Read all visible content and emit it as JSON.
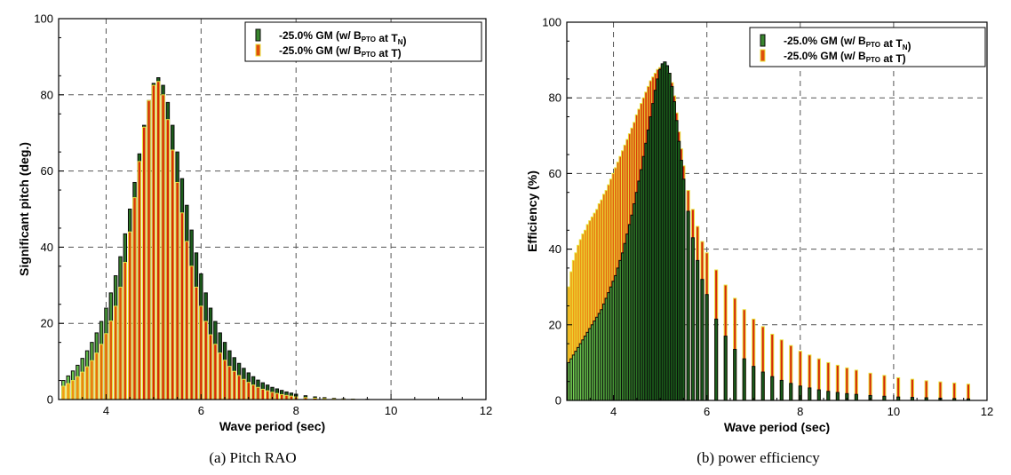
{
  "captions": [
    "(a)  Pitch  RAO",
    "(b)  power efficiency"
  ],
  "colors": {
    "series_tn_fill_low": "#7ee05a",
    "series_tn_fill_high": "#1b5e1b",
    "series_tn_edge": "#0a0a0a",
    "series_t_fill_low": "#f3a316",
    "series_t_fill_high": "#d62a08",
    "series_t_edge": "#e8e23a",
    "grid": "#555555"
  },
  "chart_data": [
    {
      "type": "bar",
      "title": "",
      "xlabel": "Wave period (sec)",
      "ylabel": "Significant pitch (deg.)",
      "xlim": [
        3,
        12
      ],
      "ylim": [
        0,
        100
      ],
      "xticks": [
        4,
        6,
        8,
        10,
        12
      ],
      "yticks": [
        0,
        20,
        40,
        60,
        80,
        100
      ],
      "grid": true,
      "legend_position": "top-right",
      "x": [
        3.1,
        3.2,
        3.3,
        3.4,
        3.5,
        3.6,
        3.7,
        3.8,
        3.9,
        4.0,
        4.1,
        4.2,
        4.3,
        4.4,
        4.5,
        4.6,
        4.7,
        4.8,
        4.9,
        5.0,
        5.1,
        5.2,
        5.3,
        5.4,
        5.5,
        5.6,
        5.7,
        5.8,
        5.9,
        6.0,
        6.1,
        6.2,
        6.3,
        6.4,
        6.5,
        6.6,
        6.7,
        6.8,
        6.9,
        7.0,
        7.1,
        7.2,
        7.3,
        7.4,
        7.5,
        7.6,
        7.7,
        7.8,
        7.9,
        8.0,
        8.2,
        8.4,
        8.6,
        8.8,
        9.0,
        9.2,
        9.5
      ],
      "series": [
        {
          "name": "-25.0% GM (w/ B_PTO at T_N)",
          "values": [
            5.0,
            6.2,
            7.5,
            9.0,
            10.8,
            12.8,
            15.0,
            17.5,
            20.5,
            24.0,
            28.0,
            32.5,
            37.5,
            43.5,
            50.0,
            57.0,
            64.5,
            72.0,
            78.5,
            83.0,
            84.5,
            82.5,
            78.0,
            72.0,
            65.0,
            58.0,
            51.0,
            44.5,
            38.5,
            33.0,
            28.0,
            24.0,
            20.5,
            17.5,
            15.0,
            12.8,
            11.0,
            9.5,
            8.2,
            7.0,
            6.0,
            5.1,
            4.4,
            3.8,
            3.2,
            2.8,
            2.4,
            2.0,
            1.7,
            1.4,
            1.0,
            0.7,
            0.5,
            0.3,
            0.2,
            0.1,
            0.05
          ]
        },
        {
          "name": "-25.0% GM (w/ B_PTO at T)",
          "values": [
            3.5,
            4.2,
            5.0,
            6.0,
            7.2,
            8.6,
            10.2,
            12.2,
            14.5,
            17.3,
            20.6,
            24.5,
            29.5,
            36.0,
            44.0,
            53.0,
            62.5,
            71.5,
            78.5,
            82.5,
            83.5,
            80.0,
            73.5,
            65.5,
            57.0,
            49.0,
            41.5,
            35.0,
            29.5,
            24.5,
            20.5,
            17.0,
            14.5,
            12.2,
            10.3,
            8.7,
            7.4,
            6.3,
            5.3,
            4.5,
            3.8,
            3.2,
            2.7,
            2.3,
            1.9,
            1.6,
            1.3,
            1.1,
            0.9,
            0.7,
            0.5,
            0.35,
            0.25,
            0.15,
            0.1,
            0.05,
            0.0
          ]
        }
      ]
    },
    {
      "type": "bar",
      "title": "",
      "xlabel": "Wave period (sec)",
      "ylabel": "Efficiency (%)",
      "xlim": [
        3,
        12
      ],
      "ylim": [
        0,
        100
      ],
      "xticks": [
        4,
        6,
        8,
        10,
        12
      ],
      "yticks": [
        0,
        20,
        40,
        60,
        80,
        100
      ],
      "grid": true,
      "legend_position": "top-right",
      "x": [
        3.05,
        3.1,
        3.15,
        3.2,
        3.25,
        3.3,
        3.35,
        3.4,
        3.45,
        3.5,
        3.55,
        3.6,
        3.65,
        3.7,
        3.75,
        3.8,
        3.85,
        3.9,
        3.95,
        4.0,
        4.05,
        4.1,
        4.15,
        4.2,
        4.25,
        4.3,
        4.35,
        4.4,
        4.45,
        4.5,
        4.55,
        4.6,
        4.65,
        4.7,
        4.75,
        4.8,
        4.85,
        4.9,
        4.95,
        5.0,
        5.05,
        5.1,
        5.15,
        5.2,
        5.25,
        5.3,
        5.35,
        5.4,
        5.45,
        5.5,
        5.6,
        5.7,
        5.8,
        5.9,
        6.0,
        6.2,
        6.4,
        6.6,
        6.8,
        7.0,
        7.2,
        7.4,
        7.6,
        7.8,
        8.0,
        8.2,
        8.4,
        8.6,
        8.8,
        9.0,
        9.2,
        9.5,
        9.8,
        10.1,
        10.4,
        10.7,
        11.0,
        11.3,
        11.6
      ],
      "series": [
        {
          "name": "-25.0% GM (w/ B_PTO at T_N)",
          "values": [
            10.0,
            11.0,
            12.0,
            13.0,
            14.0,
            15.0,
            16.0,
            17.0,
            18.0,
            19.0,
            20.0,
            21.0,
            22.0,
            23.0,
            24.0,
            25.5,
            27.0,
            28.5,
            30.0,
            31.5,
            33.0,
            35.0,
            37.0,
            39.0,
            41.5,
            44.0,
            46.5,
            49.0,
            52.0,
            55.0,
            58.0,
            61.0,
            64.5,
            68.0,
            71.5,
            75.0,
            78.5,
            82.0,
            85.0,
            87.5,
            89.0,
            89.5,
            88.5,
            86.5,
            83.0,
            79.0,
            74.0,
            68.5,
            63.5,
            58.5,
            50.0,
            43.0,
            37.0,
            32.0,
            28.0,
            21.5,
            17.0,
            13.5,
            11.0,
            9.0,
            7.5,
            6.3,
            5.3,
            4.5,
            3.8,
            3.3,
            2.8,
            2.4,
            2.1,
            1.8,
            1.6,
            1.3,
            1.1,
            0.9,
            0.8,
            0.7,
            0.6,
            0.5,
            0.4
          ]
        },
        {
          "name": "-25.0% GM (w/ B_PTO at T)",
          "values": [
            30.0,
            34.0,
            37.0,
            39.0,
            41.0,
            42.5,
            44.0,
            45.0,
            46.5,
            47.5,
            48.5,
            49.5,
            50.5,
            52.0,
            53.0,
            54.5,
            55.5,
            57.0,
            58.5,
            60.0,
            61.5,
            63.0,
            64.5,
            66.0,
            67.5,
            69.0,
            70.5,
            72.0,
            73.5,
            75.5,
            77.0,
            78.5,
            80.0,
            81.5,
            83.0,
            84.5,
            85.5,
            86.5,
            87.5,
            88.0,
            88.5,
            88.5,
            88.0,
            86.5,
            84.0,
            80.5,
            76.0,
            71.0,
            66.5,
            62.0,
            55.5,
            50.5,
            46.0,
            42.0,
            39.0,
            34.5,
            30.5,
            27.0,
            24.0,
            21.5,
            19.5,
            17.5,
            16.0,
            14.5,
            13.0,
            12.0,
            11.0,
            10.0,
            9.3,
            8.6,
            8.0,
            7.2,
            6.6,
            6.0,
            5.6,
            5.2,
            4.9,
            4.6,
            4.3
          ]
        }
      ]
    }
  ]
}
